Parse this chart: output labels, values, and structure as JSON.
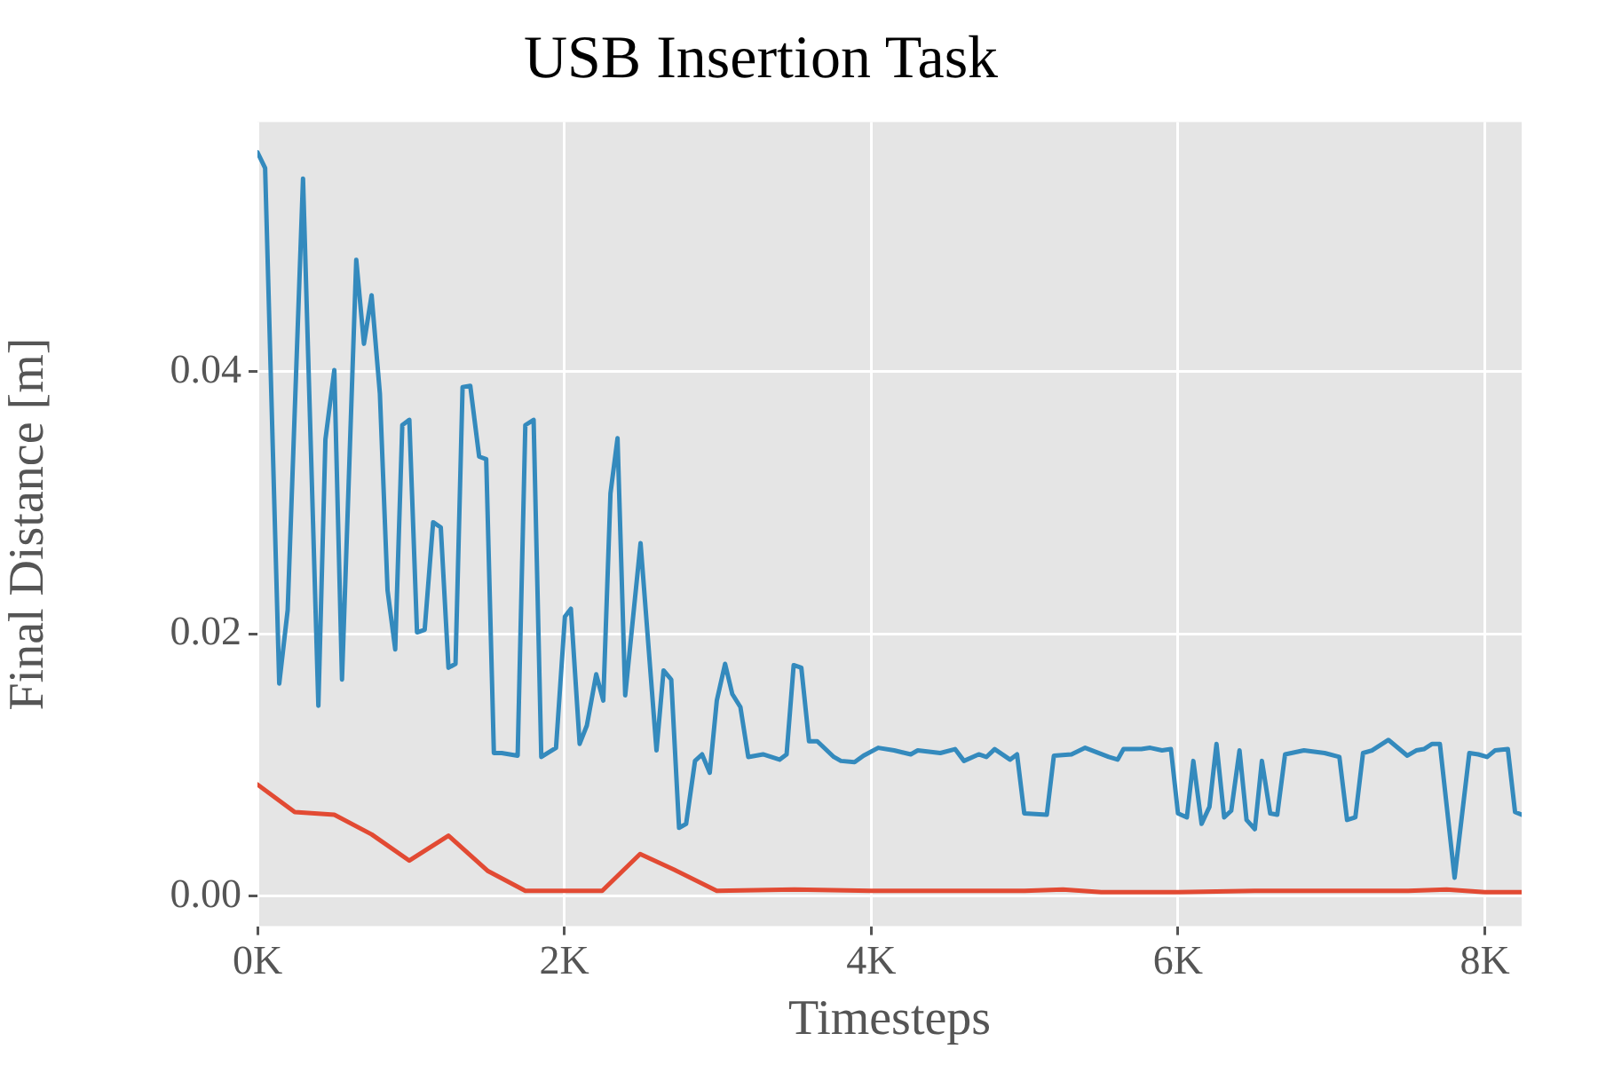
{
  "chart_data": {
    "type": "line",
    "title": "USB Insertion Task",
    "xlabel": "Timesteps",
    "ylabel": "Final Distance [m]",
    "xlim": [
      0,
      8240
    ],
    "ylim": [
      -0.0023,
      0.059
    ],
    "xticks": [
      {
        "value": 0,
        "label": "0K"
      },
      {
        "value": 2000,
        "label": "2K"
      },
      {
        "value": 4000,
        "label": "4K"
      },
      {
        "value": 6000,
        "label": "6K"
      },
      {
        "value": 8000,
        "label": "8K"
      }
    ],
    "yticks": [
      {
        "value": 0,
        "label": "0.00"
      },
      {
        "value": 0.02,
        "label": "0.02"
      },
      {
        "value": 0.04,
        "label": "0.04"
      }
    ],
    "grid": true,
    "legend": false,
    "marker": "none",
    "line_style": "solid",
    "series": [
      {
        "color": "#348abd",
        "x": [
          0,
          50,
          142,
          197,
          297,
          397,
          443,
          501,
          551,
          644,
          694,
          744,
          798,
          848,
          898,
          944,
          990,
          1040,
          1090,
          1145,
          1195,
          1245,
          1291,
          1337,
          1387,
          1445,
          1491,
          1541,
          1592,
          1696,
          1746,
          1800,
          1850,
          1946,
          2004,
          2043,
          2100,
          2147,
          2208,
          2254,
          2301,
          2347,
          2397,
          2497,
          2601,
          2647,
          2697,
          2748,
          2794,
          2852,
          2898,
          2948,
          2994,
          3048,
          3095,
          3148,
          3199,
          3295,
          3403,
          3449,
          3495,
          3545,
          3595,
          3649,
          3757,
          3803,
          3892,
          3950,
          4046,
          4150,
          4258,
          4304,
          4451,
          4547,
          4605,
          4701,
          4751,
          4805,
          4905,
          4951,
          4998,
          5145,
          5191,
          5306,
          5395,
          5549,
          5607,
          5645,
          5761,
          5819,
          5896,
          5954,
          6000,
          6058,
          6100,
          6154,
          6205,
          6251,
          6301,
          6347,
          6401,
          6447,
          6501,
          6547,
          6601,
          6647,
          6698,
          6821,
          6956,
          7052,
          7102,
          7156,
          7206,
          7264,
          7372,
          7495,
          7553,
          7603,
          7657,
          7707,
          7803,
          7899,
          7957,
          8015,
          8066,
          8150,
          8197,
          8240
        ],
        "values": [
          0.0567,
          0.0555,
          0.0162,
          0.0218,
          0.0547,
          0.0145,
          0.0348,
          0.0401,
          0.0165,
          0.0485,
          0.0421,
          0.0458,
          0.0383,
          0.0233,
          0.0188,
          0.0359,
          0.0363,
          0.0201,
          0.0203,
          0.0285,
          0.0281,
          0.0174,
          0.0177,
          0.0388,
          0.0389,
          0.0335,
          0.0333,
          0.0109,
          0.0109,
          0.0107,
          0.0359,
          0.0363,
          0.0106,
          0.0113,
          0.0213,
          0.0219,
          0.0116,
          0.013,
          0.0169,
          0.0149,
          0.0307,
          0.0349,
          0.0153,
          0.0269,
          0.0111,
          0.0172,
          0.0165,
          0.0052,
          0.0055,
          0.0103,
          0.0108,
          0.0094,
          0.0149,
          0.0177,
          0.0154,
          0.0144,
          0.0106,
          0.0108,
          0.0104,
          0.0108,
          0.0176,
          0.0174,
          0.0118,
          0.0118,
          0.0106,
          0.0103,
          0.0102,
          0.0107,
          0.0113,
          0.0111,
          0.0108,
          0.0111,
          0.0109,
          0.0112,
          0.0103,
          0.0108,
          0.0106,
          0.0112,
          0.0104,
          0.0108,
          0.0063,
          0.0062,
          0.0107,
          0.0108,
          0.0113,
          0.0106,
          0.0104,
          0.0112,
          0.0112,
          0.0113,
          0.0111,
          0.0112,
          0.0063,
          0.006,
          0.0103,
          0.0055,
          0.0068,
          0.0116,
          0.006,
          0.0065,
          0.0111,
          0.0058,
          0.0051,
          0.0103,
          0.0063,
          0.0062,
          0.0108,
          0.0111,
          0.0109,
          0.0106,
          0.0058,
          0.006,
          0.0109,
          0.0111,
          0.0119,
          0.0107,
          0.0111,
          0.0112,
          0.0116,
          0.0116,
          0.0014,
          0.0109,
          0.0108,
          0.0106,
          0.0111,
          0.0112,
          0.0064,
          0.0062
        ]
      },
      {
        "color": "#e24a33",
        "x": [
          0,
          243,
          501,
          744,
          990,
          1245,
          1503,
          1746,
          2247,
          2494,
          2717,
          2994,
          3500,
          4000,
          4500,
          5000,
          5250,
          5500,
          6000,
          6500,
          7000,
          7500,
          7750,
          8000,
          8240
        ],
        "values": [
          0.0085,
          0.0064,
          0.0062,
          0.0047,
          0.0027,
          0.0046,
          0.0019,
          0.0004,
          0.0004,
          0.0032,
          0.002,
          0.0004,
          0.0005,
          0.0004,
          0.0004,
          0.0004,
          0.0005,
          0.0003,
          0.0003,
          0.0004,
          0.0004,
          0.0004,
          0.0005,
          0.0003,
          0.0003
        ]
      }
    ]
  }
}
